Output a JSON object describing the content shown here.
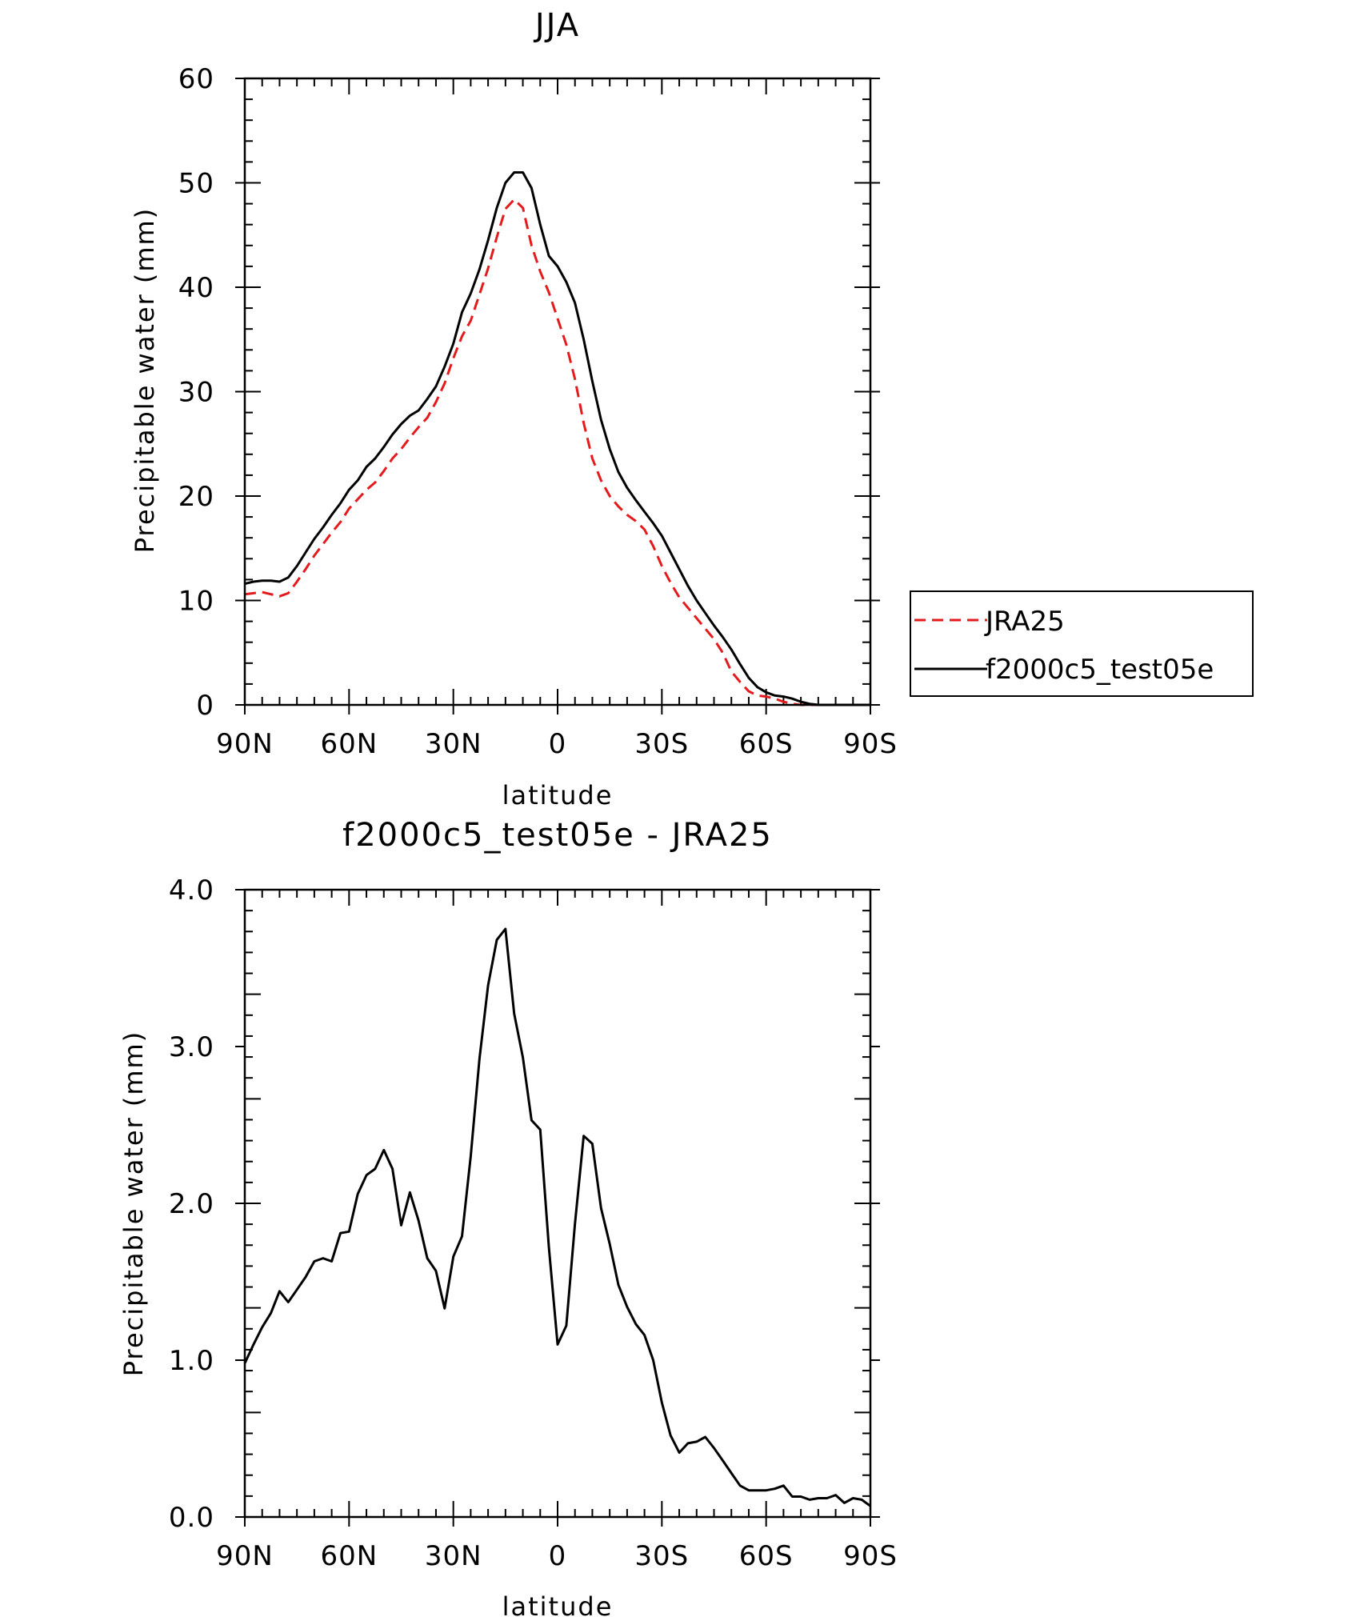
{
  "chart_data": [
    {
      "type": "line",
      "title": "JJA",
      "xlabel": "latitude",
      "ylabel": "Precipitable water (mm)",
      "xlim": [
        90,
        -90
      ],
      "ylim": [
        0,
        60
      ],
      "x_ticks": [
        {
          "v": 90,
          "label": "90N"
        },
        {
          "v": 60,
          "label": "60N"
        },
        {
          "v": 30,
          "label": "30N"
        },
        {
          "v": 0,
          "label": "0"
        },
        {
          "v": -30,
          "label": "30S"
        },
        {
          "v": -60,
          "label": "60S"
        },
        {
          "v": -90,
          "label": "90S"
        }
      ],
      "y_ticks": [
        {
          "v": 0,
          "label": "0"
        },
        {
          "v": 10,
          "label": "10"
        },
        {
          "v": 20,
          "label": "20"
        },
        {
          "v": 30,
          "label": "30"
        },
        {
          "v": 40,
          "label": "40"
        },
        {
          "v": 50,
          "label": "50"
        },
        {
          "v": 60,
          "label": "60"
        }
      ],
      "series": [
        {
          "name": "JRA25",
          "color": "#e41a1c",
          "dash": true,
          "x": [
            90,
            87.5,
            85,
            82.5,
            80,
            77.5,
            75,
            72.5,
            70,
            67.5,
            65,
            62.5,
            60,
            57.5,
            55,
            52.5,
            50,
            47.5,
            45,
            42.5,
            40,
            37.5,
            35,
            32.5,
            30,
            27.5,
            25,
            22.5,
            20,
            17.5,
            15,
            12.5,
            10,
            7.5,
            5,
            2.5,
            0,
            -2.5,
            -5,
            -7.5,
            -10,
            -12.5,
            -15,
            -17.5,
            -20,
            -22.5,
            -25,
            -27.5,
            -30,
            -32.5,
            -35,
            -37.5,
            -40,
            -42.5,
            -45,
            -47.5,
            -50,
            -52.5,
            -55,
            -57.5,
            -60,
            -62.5,
            -65,
            -67.5,
            -70,
            -72.5,
            -75,
            -77.5,
            -80,
            -82.5,
            -85,
            -87.5,
            -90
          ],
          "y": [
            10.6,
            10.7,
            10.8,
            10.6,
            10.4,
            10.7,
            11.8,
            13.0,
            14.3,
            15.4,
            16.5,
            17.5,
            18.8,
            19.7,
            20.6,
            21.3,
            22.4,
            23.6,
            24.5,
            25.6,
            26.6,
            27.5,
            29.0,
            30.8,
            33.2,
            35.3,
            36.8,
            39.3,
            41.8,
            44.8,
            47.5,
            48.4,
            47.6,
            44.0,
            41.5,
            39.5,
            37.0,
            34.5,
            31.2,
            27.0,
            23.6,
            21.5,
            20.0,
            19.0,
            18.2,
            17.6,
            16.8,
            15.2,
            13.3,
            11.7,
            10.3,
            9.3,
            8.3,
            7.3,
            6.3,
            5.0,
            3.2,
            2.2,
            1.3,
            0.9,
            0.8,
            0.6,
            0.3,
            0.1,
            0.0,
            0.0,
            0.0,
            0.0,
            0.0,
            0.0,
            0.0,
            0.0,
            0.0
          ]
        },
        {
          "name": "f2000c5_test05e",
          "color": "#000000",
          "dash": false,
          "x": [
            90,
            87.5,
            85,
            82.5,
            80,
            77.5,
            75,
            72.5,
            70,
            67.5,
            65,
            62.5,
            60,
            57.5,
            55,
            52.5,
            50,
            47.5,
            45,
            42.5,
            40,
            37.5,
            35,
            32.5,
            30,
            27.5,
            25,
            22.5,
            20,
            17.5,
            15,
            12.5,
            10,
            7.5,
            5,
            2.5,
            0,
            -2.5,
            -5,
            -7.5,
            -10,
            -12.5,
            -15,
            -17.5,
            -20,
            -22.5,
            -25,
            -27.5,
            -30,
            -32.5,
            -35,
            -37.5,
            -40,
            -42.5,
            -45,
            -47.5,
            -50,
            -52.5,
            -55,
            -57.5,
            -60,
            -62.5,
            -65,
            -67.5,
            -70,
            -72.5,
            -75,
            -77.5,
            -80,
            -82.5,
            -85,
            -87.5,
            -90
          ],
          "y": [
            11.6,
            11.8,
            11.9,
            11.9,
            11.8,
            12.2,
            13.3,
            14.6,
            15.9,
            17.0,
            18.2,
            19.3,
            20.6,
            21.5,
            22.8,
            23.6,
            24.7,
            25.9,
            26.9,
            27.7,
            28.2,
            29.3,
            30.5,
            32.4,
            34.6,
            37.6,
            39.4,
            41.7,
            44.5,
            47.6,
            50.0,
            51.0,
            51.0,
            49.5,
            46.0,
            43.0,
            42.0,
            40.5,
            38.5,
            35.0,
            31.0,
            27.3,
            24.5,
            22.3,
            20.8,
            19.6,
            18.5,
            17.4,
            16.2,
            14.6,
            13.0,
            11.4,
            10.0,
            8.8,
            7.6,
            6.5,
            5.3,
            3.9,
            2.6,
            1.7,
            1.2,
            0.9,
            0.8,
            0.6,
            0.3,
            0.1,
            0.0,
            0.0,
            0.0,
            0.0,
            0.0,
            0.0,
            0.0
          ]
        }
      ],
      "legend": {
        "position": "right",
        "entries": [
          "JRA25",
          "f2000c5_test05e"
        ]
      }
    },
    {
      "type": "line",
      "title": "f2000c5_test05e - JRA25",
      "xlabel": "latitude",
      "ylabel": "Precipitable water (mm)",
      "xlim": [
        90,
        -90
      ],
      "ylim": [
        0,
        4
      ],
      "x_ticks": [
        {
          "v": 90,
          "label": "90N"
        },
        {
          "v": 60,
          "label": "60N"
        },
        {
          "v": 30,
          "label": "30N"
        },
        {
          "v": 0,
          "label": "0"
        },
        {
          "v": -30,
          "label": "30S"
        },
        {
          "v": -60,
          "label": "60S"
        },
        {
          "v": -90,
          "label": "90S"
        }
      ],
      "y_ticks": [
        {
          "v": 0,
          "label": "0.0"
        },
        {
          "v": 1,
          "label": "1.0"
        },
        {
          "v": 2,
          "label": "2.0"
        },
        {
          "v": 3,
          "label": "3.0"
        },
        {
          "v": 4,
          "label": "4.0"
        }
      ],
      "series": [
        {
          "name": "f2000c5_test05e - JRA25",
          "color": "#000000",
          "dash": false,
          "x": [
            90,
            87.5,
            85,
            82.5,
            80,
            77.5,
            75,
            72.5,
            70,
            67.5,
            65,
            62.5,
            60,
            57.5,
            55,
            52.5,
            50,
            47.5,
            45,
            42.5,
            40,
            37.5,
            35,
            32.5,
            30,
            27.5,
            25,
            22.5,
            20,
            17.5,
            15,
            12.5,
            10,
            7.5,
            5,
            2.5,
            0,
            -2.5,
            -5,
            -7.5,
            -10,
            -12.5,
            -15,
            -17.5,
            -20,
            -22.5,
            -25,
            -27.5,
            -30,
            -32.5,
            -35,
            -37.5,
            -40,
            -42.5,
            -45,
            -47.5,
            -50,
            -52.5,
            -55,
            -57.5,
            -60,
            -62.5,
            -65,
            -67.5,
            -70,
            -72.5,
            -75,
            -77.5,
            -80,
            -82.5,
            -85,
            -87.5,
            -90
          ],
          "y": [
            0.98,
            1.1,
            1.21,
            1.3,
            1.44,
            1.37,
            1.45,
            1.53,
            1.63,
            1.65,
            1.63,
            1.81,
            1.82,
            2.06,
            2.18,
            2.22,
            2.34,
            2.22,
            1.86,
            2.07,
            1.89,
            1.65,
            1.57,
            1.33,
            1.66,
            1.79,
            2.3,
            2.92,
            3.39,
            3.68,
            3.75,
            3.21,
            2.93,
            2.53,
            2.47,
            1.72,
            1.1,
            1.22,
            1.87,
            2.43,
            2.38,
            1.97,
            1.74,
            1.48,
            1.34,
            1.23,
            1.16,
            1.0,
            0.73,
            0.52,
            0.41,
            0.47,
            0.48,
            0.51,
            0.44,
            0.36,
            0.28,
            0.2,
            0.17,
            0.17,
            0.17,
            0.18,
            0.2,
            0.13,
            0.13,
            0.11,
            0.12,
            0.12,
            0.14,
            0.09,
            0.12,
            0.11,
            0.07
          ]
        }
      ]
    }
  ]
}
